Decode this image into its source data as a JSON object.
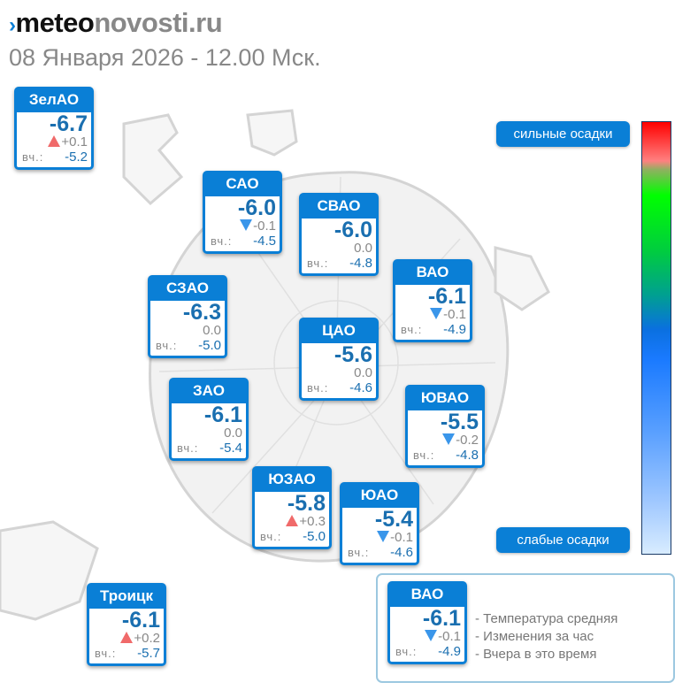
{
  "header": {
    "logo_mark": "›",
    "logo_part1": "meteo",
    "logo_part2": "novosti.ru",
    "date": "08 Января 2026 - 12.00 Мск."
  },
  "colors": {
    "accent": "#0a7fd6",
    "up": "#f06a6a",
    "down": "#3a96ea"
  },
  "yesterday_label": "вч.:",
  "districts": [
    {
      "name": "ЗелАО",
      "temp": "-6.7",
      "trend": "up",
      "change": "+0.1",
      "yesterday": "-5.2"
    },
    {
      "name": "САО",
      "temp": "-6.0",
      "trend": "down",
      "change": "-0.1",
      "yesterday": "-4.5"
    },
    {
      "name": "СВАО",
      "temp": "-6.0",
      "trend": "none",
      "change": "0.0",
      "yesterday": "-4.8"
    },
    {
      "name": "ВАО",
      "temp": "-6.1",
      "trend": "down",
      "change": "-0.1",
      "yesterday": "-4.9"
    },
    {
      "name": "СЗАО",
      "temp": "-6.3",
      "trend": "none",
      "change": "0.0",
      "yesterday": "-5.0"
    },
    {
      "name": "ЦАО",
      "temp": "-5.6",
      "trend": "none",
      "change": "0.0",
      "yesterday": "-4.6"
    },
    {
      "name": "ЗАО",
      "temp": "-6.1",
      "trend": "none",
      "change": "0.0",
      "yesterday": "-5.4"
    },
    {
      "name": "ЮВАО",
      "temp": "-5.5",
      "trend": "down",
      "change": "-0.2",
      "yesterday": "-4.8"
    },
    {
      "name": "ЮЗАО",
      "temp": "-5.8",
      "trend": "up",
      "change": "+0.3",
      "yesterday": "-5.0"
    },
    {
      "name": "ЮАО",
      "temp": "-5.4",
      "trend": "down",
      "change": "-0.1",
      "yesterday": "-4.6"
    },
    {
      "name": "Троицк",
      "temp": "-6.1",
      "trend": "up",
      "change": "+0.2",
      "yesterday": "-5.7"
    }
  ],
  "scale": {
    "top_label": "сильные осадки",
    "bottom_label": "слабые осадки"
  },
  "legend": {
    "sample": {
      "name": "ВАО",
      "temp": "-6.1",
      "trend": "down",
      "change": "-0.1",
      "yesterday": "-4.9"
    },
    "lines": [
      "- Температура средняя",
      "- Изменения за час",
      "- Вчера в это время"
    ]
  }
}
